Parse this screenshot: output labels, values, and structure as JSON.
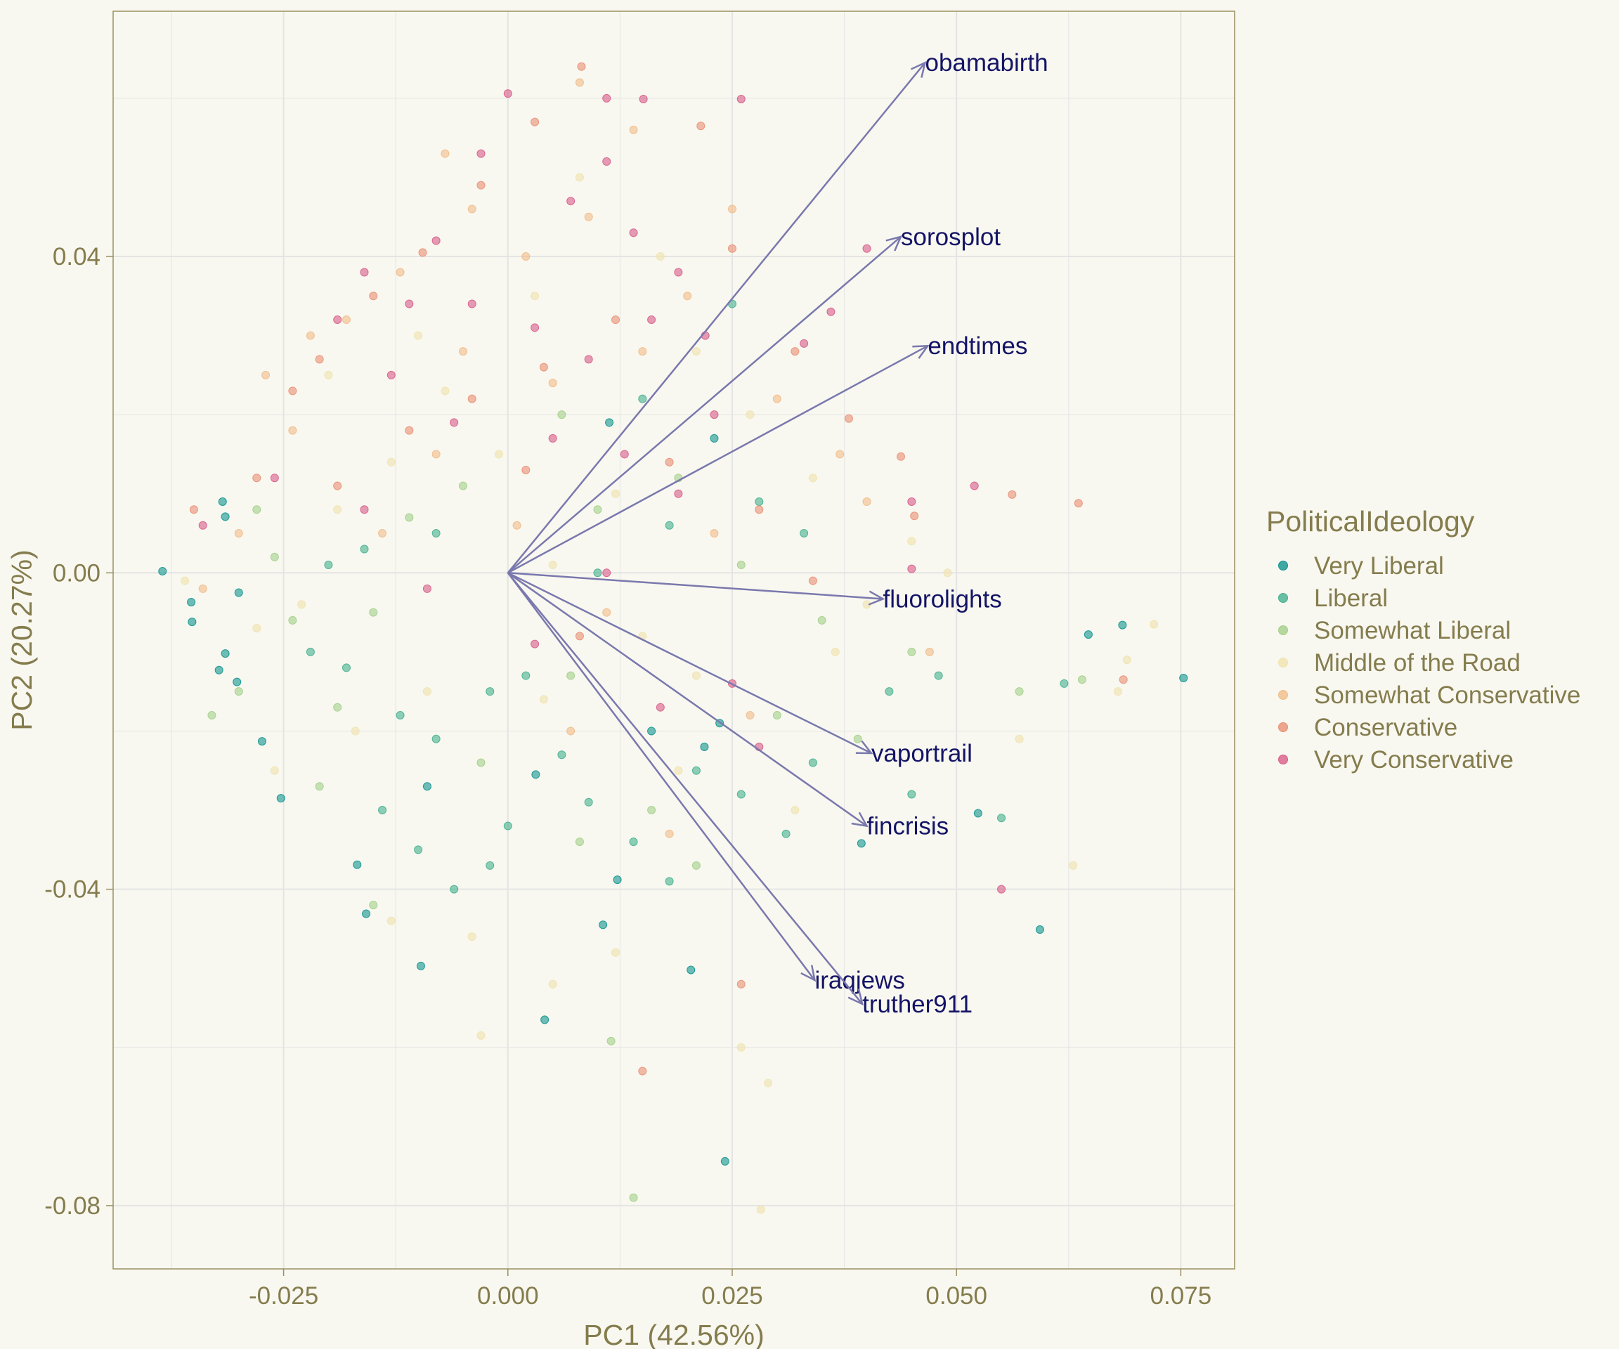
{
  "chart_data": {
    "type": "scatter",
    "subtype": "pca-biplot",
    "xlabel": "PC1 (42.56%)",
    "ylabel": "PC2 (20.27%)",
    "xlim": [
      -0.044,
      0.081
    ],
    "ylim": [
      -0.088,
      0.071
    ],
    "xticks": [
      -0.025,
      0,
      0.025,
      0.05,
      0.075
    ],
    "xtick_labels": [
      "-0.025",
      "0.000",
      "0.025",
      "0.050",
      "0.075"
    ],
    "yticks": [
      -0.08,
      -0.04,
      0,
      0.04
    ],
    "ytick_labels": [
      "-0.08",
      "-0.04",
      "0.00",
      "0.04"
    ],
    "grid": true,
    "legend_placement": "right",
    "legend_title": "PoliticalIdeology",
    "categories": [
      {
        "name": "Very Liberal",
        "color": "#11948f"
      },
      {
        "name": "Liberal",
        "color": "#45b090"
      },
      {
        "name": "Somewhat Liberal",
        "color": "#a4d08a"
      },
      {
        "name": "Middle of the Road",
        "color": "#f0e3ae"
      },
      {
        "name": "Somewhat Conservative",
        "color": "#f1bd89"
      },
      {
        "name": "Conservative",
        "color": "#ea9074"
      },
      {
        "name": "Very Conservative",
        "color": "#d95c8a"
      }
    ],
    "loadings": [
      {
        "name": "obamabirth",
        "x": 0.0465,
        "y": 0.0645
      },
      {
        "name": "sorosplot",
        "x": 0.0438,
        "y": 0.0425
      },
      {
        "name": "endtimes",
        "x": 0.0468,
        "y": 0.0287
      },
      {
        "name": "fluorolights",
        "x": 0.0418,
        "y": -0.0033
      },
      {
        "name": "vaportrail",
        "x": 0.0405,
        "y": -0.0228
      },
      {
        "name": "fincrisis",
        "x": 0.04,
        "y": -0.032
      },
      {
        "name": "iraqjews",
        "x": 0.0342,
        "y": -0.0515
      },
      {
        "name": "truther911",
        "x": 0.0395,
        "y": -0.0545
      }
    ],
    "arrow_color": "#7a78ad",
    "point_opacity": 0.6,
    "points": [
      {
        "x": -0.0385,
        "y": 0.0002,
        "g": 0
      },
      {
        "x": 0.0753,
        "y": -0.0133,
        "g": 0
      },
      {
        "x": -0.0353,
        "y": -0.0037,
        "g": 0
      },
      {
        "x": -0.0352,
        "y": -0.0062,
        "g": 0
      },
      {
        "x": -0.0315,
        "y": 0.0071,
        "g": 0
      },
      {
        "x": -0.0318,
        "y": 0.009,
        "g": 0
      },
      {
        "x": -0.0315,
        "y": -0.0102,
        "g": 0
      },
      {
        "x": -0.0322,
        "y": -0.0123,
        "g": 0
      },
      {
        "x": -0.0302,
        "y": -0.0138,
        "g": 0
      },
      {
        "x": 0.0593,
        "y": -0.0451,
        "g": 0
      },
      {
        "x": 0.0685,
        "y": -0.0066,
        "g": 0
      },
      {
        "x": 0.0647,
        "y": -0.0078,
        "g": 0
      },
      {
        "x": 0.0524,
        "y": -0.0304,
        "g": 0
      },
      {
        "x": 0.0242,
        "y": -0.0744,
        "g": 0
      },
      {
        "x": 0.0394,
        "y": -0.0342,
        "g": 0
      },
      {
        "x": 0.0106,
        "y": -0.0445,
        "g": 0
      },
      {
        "x": 0.0204,
        "y": -0.0502,
        "g": 0
      },
      {
        "x": -0.0097,
        "y": -0.0497,
        "g": 0
      },
      {
        "x": 0.0041,
        "y": -0.0565,
        "g": 0
      },
      {
        "x": -0.0158,
        "y": -0.0431,
        "g": 0
      },
      {
        "x": 0.016,
        "y": -0.02,
        "g": 0
      },
      {
        "x": 0.0236,
        "y": -0.019,
        "g": 0
      },
      {
        "x": 0.0122,
        "y": -0.0388,
        "g": 0
      },
      {
        "x": 0.0219,
        "y": -0.022,
        "g": 0
      },
      {
        "x": 0.0113,
        "y": 0.019,
        "g": 0
      },
      {
        "x": 0.023,
        "y": 0.017,
        "g": 0
      },
      {
        "x": -0.0274,
        "y": -0.0213,
        "g": 0
      },
      {
        "x": -0.0253,
        "y": -0.0285,
        "g": 0
      },
      {
        "x": -0.0168,
        "y": -0.0369,
        "g": 0
      },
      {
        "x": -0.03,
        "y": -0.0025,
        "g": 0
      },
      {
        "x": -0.009,
        "y": -0.027,
        "g": 0
      },
      {
        "x": 0.0031,
        "y": -0.0255,
        "g": 0
      },
      {
        "x": 0.034,
        "y": -0.024,
        "g": 1
      },
      {
        "x": 0.0425,
        "y": -0.015,
        "g": 1
      },
      {
        "x": 0.048,
        "y": -0.013,
        "g": 1
      },
      {
        "x": 0.062,
        "y": -0.014,
        "g": 1
      },
      {
        "x": 0.015,
        "y": 0.022,
        "g": 1
      },
      {
        "x": 0.025,
        "y": 0.034,
        "g": 1
      },
      {
        "x": 0.018,
        "y": 0.006,
        "g": 1
      },
      {
        "x": 0.028,
        "y": 0.009,
        "g": 1
      },
      {
        "x": 0.033,
        "y": 0.005,
        "g": 1
      },
      {
        "x": -0.022,
        "y": -0.01,
        "g": 1
      },
      {
        "x": -0.018,
        "y": -0.012,
        "g": 1
      },
      {
        "x": -0.012,
        "y": -0.018,
        "g": 1
      },
      {
        "x": -0.008,
        "y": -0.021,
        "g": 1
      },
      {
        "x": -0.002,
        "y": -0.015,
        "g": 1
      },
      {
        "x": 0.002,
        "y": -0.013,
        "g": 1
      },
      {
        "x": 0.006,
        "y": -0.023,
        "g": 1
      },
      {
        "x": 0.009,
        "y": -0.029,
        "g": 1
      },
      {
        "x": 0.014,
        "y": -0.034,
        "g": 1
      },
      {
        "x": 0.018,
        "y": -0.039,
        "g": 1
      },
      {
        "x": 0.021,
        "y": -0.025,
        "g": 1
      },
      {
        "x": 0.026,
        "y": -0.028,
        "g": 1
      },
      {
        "x": 0.031,
        "y": -0.033,
        "g": 1
      },
      {
        "x": -0.014,
        "y": -0.03,
        "g": 1
      },
      {
        "x": -0.01,
        "y": -0.035,
        "g": 1
      },
      {
        "x": -0.006,
        "y": -0.04,
        "g": 1
      },
      {
        "x": -0.002,
        "y": -0.037,
        "g": 1
      },
      {
        "x": 0.0,
        "y": -0.032,
        "g": 1
      },
      {
        "x": -0.016,
        "y": 0.003,
        "g": 1
      },
      {
        "x": -0.02,
        "y": 0.001,
        "g": 1
      },
      {
        "x": -0.008,
        "y": 0.005,
        "g": 1
      },
      {
        "x": 0.01,
        "y": 0.0,
        "g": 1
      },
      {
        "x": 0.055,
        "y": -0.031,
        "g": 1
      },
      {
        "x": 0.045,
        "y": -0.028,
        "g": 1
      },
      {
        "x": -0.033,
        "y": -0.018,
        "g": 2
      },
      {
        "x": -0.03,
        "y": -0.015,
        "g": 2
      },
      {
        "x": -0.028,
        "y": 0.008,
        "g": 2
      },
      {
        "x": -0.026,
        "y": 0.002,
        "g": 2
      },
      {
        "x": -0.024,
        "y": -0.006,
        "g": 2
      },
      {
        "x": -0.019,
        "y": -0.017,
        "g": 2
      },
      {
        "x": 0.014,
        "y": -0.079,
        "g": 2
      },
      {
        "x": 0.0115,
        "y": -0.0592,
        "g": 2
      },
      {
        "x": 0.064,
        "y": -0.0135,
        "g": 2
      },
      {
        "x": 0.057,
        "y": -0.015,
        "g": 2
      },
      {
        "x": 0.045,
        "y": -0.01,
        "g": 2
      },
      {
        "x": 0.035,
        "y": -0.006,
        "g": 2
      },
      {
        "x": 0.026,
        "y": 0.001,
        "g": 2
      },
      {
        "x": 0.019,
        "y": 0.012,
        "g": 2
      },
      {
        "x": 0.01,
        "y": 0.008,
        "g": 2
      },
      {
        "x": 0.006,
        "y": 0.02,
        "g": 2
      },
      {
        "x": -0.005,
        "y": 0.011,
        "g": 2
      },
      {
        "x": -0.011,
        "y": 0.007,
        "g": 2
      },
      {
        "x": -0.015,
        "y": -0.005,
        "g": 2
      },
      {
        "x": -0.003,
        "y": -0.024,
        "g": 2
      },
      {
        "x": 0.008,
        "y": -0.034,
        "g": 2
      },
      {
        "x": 0.016,
        "y": -0.03,
        "g": 2
      },
      {
        "x": -0.015,
        "y": -0.042,
        "g": 2
      },
      {
        "x": 0.021,
        "y": -0.037,
        "g": 2
      },
      {
        "x": 0.007,
        "y": -0.013,
        "g": 2
      },
      {
        "x": -0.021,
        "y": -0.027,
        "g": 2
      },
      {
        "x": 0.03,
        "y": -0.018,
        "g": 2
      },
      {
        "x": 0.039,
        "y": -0.021,
        "g": 2
      },
      {
        "x": -0.036,
        "y": -0.001,
        "g": 3
      },
      {
        "x": 0.072,
        "y": -0.0065,
        "g": 3
      },
      {
        "x": 0.069,
        "y": -0.011,
        "g": 3
      },
      {
        "x": 0.068,
        "y": -0.015,
        "g": 3
      },
      {
        "x": 0.063,
        "y": -0.037,
        "g": 3
      },
      {
        "x": 0.057,
        "y": -0.021,
        "g": 3
      },
      {
        "x": 0.0282,
        "y": -0.0805,
        "g": 3
      },
      {
        "x": 0.029,
        "y": -0.0645,
        "g": 3
      },
      {
        "x": -0.003,
        "y": -0.0585,
        "g": 3
      },
      {
        "x": 0.049,
        "y": 0.0,
        "g": 3
      },
      {
        "x": 0.045,
        "y": 0.004,
        "g": 3
      },
      {
        "x": 0.04,
        "y": -0.004,
        "g": 3
      },
      {
        "x": 0.034,
        "y": 0.012,
        "g": 3
      },
      {
        "x": 0.027,
        "y": 0.02,
        "g": 3
      },
      {
        "x": 0.021,
        "y": 0.028,
        "g": 3
      },
      {
        "x": 0.012,
        "y": 0.01,
        "g": 3
      },
      {
        "x": 0.005,
        "y": 0.001,
        "g": 3
      },
      {
        "x": -0.001,
        "y": 0.015,
        "g": 3
      },
      {
        "x": -0.007,
        "y": 0.023,
        "g": 3
      },
      {
        "x": -0.013,
        "y": 0.014,
        "g": 3
      },
      {
        "x": -0.019,
        "y": 0.008,
        "g": 3
      },
      {
        "x": -0.023,
        "y": -0.004,
        "g": 3
      },
      {
        "x": -0.026,
        "y": -0.025,
        "g": 3
      },
      {
        "x": -0.013,
        "y": -0.044,
        "g": 3
      },
      {
        "x": -0.004,
        "y": -0.046,
        "g": 3
      },
      {
        "x": 0.005,
        "y": -0.052,
        "g": 3
      },
      {
        "x": 0.012,
        "y": -0.048,
        "g": 3
      },
      {
        "x": 0.004,
        "y": -0.016,
        "g": 3
      },
      {
        "x": 0.015,
        "y": -0.008,
        "g": 3
      },
      {
        "x": 0.021,
        "y": -0.013,
        "g": 3
      },
      {
        "x": 0.032,
        "y": -0.03,
        "g": 3
      },
      {
        "x": 0.026,
        "y": -0.06,
        "g": 3
      },
      {
        "x": -0.009,
        "y": -0.015,
        "g": 3
      },
      {
        "x": -0.017,
        "y": -0.02,
        "g": 3
      },
      {
        "x": 0.017,
        "y": 0.04,
        "g": 3
      },
      {
        "x": 0.003,
        "y": 0.035,
        "g": 3
      },
      {
        "x": -0.01,
        "y": 0.03,
        "g": 3
      },
      {
        "x": -0.02,
        "y": 0.025,
        "g": 3
      },
      {
        "x": 0.008,
        "y": 0.05,
        "g": 3
      },
      {
        "x": -0.028,
        "y": -0.007,
        "g": 3
      },
      {
        "x": 0.0365,
        "y": -0.01,
        "g": 3
      },
      {
        "x": 0.019,
        "y": -0.025,
        "g": 3
      },
      {
        "x": -0.027,
        "y": 0.025,
        "g": 4
      },
      {
        "x": -0.024,
        "y": 0.018,
        "g": 4
      },
      {
        "x": -0.022,
        "y": 0.03,
        "g": 4
      },
      {
        "x": -0.03,
        "y": 0.005,
        "g": 4
      },
      {
        "x": -0.034,
        "y": -0.002,
        "g": 4
      },
      {
        "x": 0.008,
        "y": 0.062,
        "g": 4
      },
      {
        "x": 0.014,
        "y": 0.056,
        "g": 4
      },
      {
        "x": -0.007,
        "y": 0.053,
        "g": 4
      },
      {
        "x": -0.004,
        "y": 0.046,
        "g": 4
      },
      {
        "x": 0.002,
        "y": 0.04,
        "g": 4
      },
      {
        "x": 0.009,
        "y": 0.045,
        "g": 4
      },
      {
        "x": 0.02,
        "y": 0.035,
        "g": 4
      },
      {
        "x": 0.025,
        "y": 0.046,
        "g": 4
      },
      {
        "x": -0.012,
        "y": 0.038,
        "g": 4
      },
      {
        "x": -0.018,
        "y": 0.032,
        "g": 4
      },
      {
        "x": -0.005,
        "y": 0.028,
        "g": 4
      },
      {
        "x": 0.005,
        "y": 0.024,
        "g": 4
      },
      {
        "x": 0.015,
        "y": 0.028,
        "g": 4
      },
      {
        "x": 0.03,
        "y": 0.022,
        "g": 4
      },
      {
        "x": 0.037,
        "y": 0.015,
        "g": 4
      },
      {
        "x": 0.047,
        "y": -0.01,
        "g": 4
      },
      {
        "x": 0.04,
        "y": 0.009,
        "g": 4
      },
      {
        "x": -0.008,
        "y": 0.015,
        "g": 4
      },
      {
        "x": 0.001,
        "y": 0.006,
        "g": 4
      },
      {
        "x": 0.011,
        "y": -0.005,
        "g": 4
      },
      {
        "x": 0.023,
        "y": 0.005,
        "g": 4
      },
      {
        "x": -0.014,
        "y": 0.005,
        "g": 4
      },
      {
        "x": 0.007,
        "y": -0.02,
        "g": 4
      },
      {
        "x": 0.018,
        "y": -0.033,
        "g": 4
      },
      {
        "x": 0.027,
        "y": -0.018,
        "g": 4
      },
      {
        "x": 0.015,
        "y": -0.063,
        "g": 5
      },
      {
        "x": 0.0686,
        "y": -0.0135,
        "g": 5
      },
      {
        "x": 0.0636,
        "y": 0.0088,
        "g": 5
      },
      {
        "x": 0.0562,
        "y": 0.0099,
        "g": 5
      },
      {
        "x": 0.0453,
        "y": 0.0072,
        "g": 5
      },
      {
        "x": 0.0438,
        "y": 0.0147,
        "g": 5
      },
      {
        "x": 0.038,
        "y": 0.0195,
        "g": 5
      },
      {
        "x": 0.032,
        "y": 0.028,
        "g": 5
      },
      {
        "x": 0.025,
        "y": 0.041,
        "g": 5
      },
      {
        "x": 0.0215,
        "y": 0.0565,
        "g": 5
      },
      {
        "x": 0.0082,
        "y": 0.064,
        "g": 5
      },
      {
        "x": 0.003,
        "y": 0.057,
        "g": 5
      },
      {
        "x": -0.003,
        "y": 0.049,
        "g": 5
      },
      {
        "x": -0.0095,
        "y": 0.0405,
        "g": 5
      },
      {
        "x": -0.015,
        "y": 0.035,
        "g": 5
      },
      {
        "x": -0.021,
        "y": 0.027,
        "g": 5
      },
      {
        "x": -0.024,
        "y": 0.023,
        "g": 5
      },
      {
        "x": -0.028,
        "y": 0.012,
        "g": 5
      },
      {
        "x": -0.035,
        "y": 0.008,
        "g": 5
      },
      {
        "x": -0.019,
        "y": 0.011,
        "g": 5
      },
      {
        "x": -0.011,
        "y": 0.018,
        "g": 5
      },
      {
        "x": -0.004,
        "y": 0.022,
        "g": 5
      },
      {
        "x": 0.004,
        "y": 0.026,
        "g": 5
      },
      {
        "x": 0.012,
        "y": 0.032,
        "g": 5
      },
      {
        "x": 0.018,
        "y": 0.014,
        "g": 5
      },
      {
        "x": 0.028,
        "y": 0.008,
        "g": 5
      },
      {
        "x": 0.034,
        "y": -0.001,
        "g": 5
      },
      {
        "x": 0.026,
        "y": -0.052,
        "g": 5
      },
      {
        "x": 0.008,
        "y": -0.008,
        "g": 5
      },
      {
        "x": 0.002,
        "y": 0.013,
        "g": 5
      },
      {
        "x": 0.0,
        "y": 0.0606,
        "g": 6
      },
      {
        "x": 0.0151,
        "y": 0.0599,
        "g": 6
      },
      {
        "x": 0.026,
        "y": 0.0599,
        "g": 6
      },
      {
        "x": 0.011,
        "y": 0.052,
        "g": 6
      },
      {
        "x": -0.003,
        "y": 0.053,
        "g": 6
      },
      {
        "x": 0.007,
        "y": 0.047,
        "g": 6
      },
      {
        "x": 0.014,
        "y": 0.043,
        "g": 6
      },
      {
        "x": -0.008,
        "y": 0.042,
        "g": 6
      },
      {
        "x": -0.016,
        "y": 0.038,
        "g": 6
      },
      {
        "x": -0.019,
        "y": 0.032,
        "g": 6
      },
      {
        "x": -0.011,
        "y": 0.034,
        "g": 6
      },
      {
        "x": -0.004,
        "y": 0.034,
        "g": 6
      },
      {
        "x": 0.003,
        "y": 0.031,
        "g": 6
      },
      {
        "x": 0.009,
        "y": 0.027,
        "g": 6
      },
      {
        "x": 0.016,
        "y": 0.032,
        "g": 6
      },
      {
        "x": 0.022,
        "y": 0.03,
        "g": 6
      },
      {
        "x": 0.019,
        "y": 0.038,
        "g": 6
      },
      {
        "x": -0.013,
        "y": 0.025,
        "g": 6
      },
      {
        "x": -0.006,
        "y": 0.019,
        "g": 6
      },
      {
        "x": 0.005,
        "y": 0.017,
        "g": 6
      },
      {
        "x": 0.013,
        "y": 0.015,
        "g": 6
      },
      {
        "x": -0.026,
        "y": 0.012,
        "g": 6
      },
      {
        "x": -0.034,
        "y": 0.006,
        "g": 6
      },
      {
        "x": -0.016,
        "y": 0.008,
        "g": 6
      },
      {
        "x": 0.052,
        "y": 0.011,
        "g": 6
      },
      {
        "x": 0.045,
        "y": 0.009,
        "g": 6
      },
      {
        "x": 0.036,
        "y": 0.033,
        "g": 6
      },
      {
        "x": 0.04,
        "y": 0.041,
        "g": 6
      },
      {
        "x": 0.033,
        "y": 0.029,
        "g": 6
      },
      {
        "x": 0.023,
        "y": 0.02,
        "g": 6
      },
      {
        "x": 0.019,
        "y": 0.01,
        "g": 6
      },
      {
        "x": 0.011,
        "y": 0.0,
        "g": 6
      },
      {
        "x": 0.025,
        "y": -0.014,
        "g": 6
      },
      {
        "x": 0.028,
        "y": -0.022,
        "g": 6
      },
      {
        "x": 0.055,
        "y": -0.04,
        "g": 6
      },
      {
        "x": 0.045,
        "y": 0.0005,
        "g": 6
      },
      {
        "x": 0.003,
        "y": -0.009,
        "g": 6
      },
      {
        "x": -0.009,
        "y": -0.002,
        "g": 6
      },
      {
        "x": 0.011,
        "y": 0.06,
        "g": 6
      },
      {
        "x": 0.017,
        "y": -0.017,
        "g": 6
      }
    ]
  }
}
